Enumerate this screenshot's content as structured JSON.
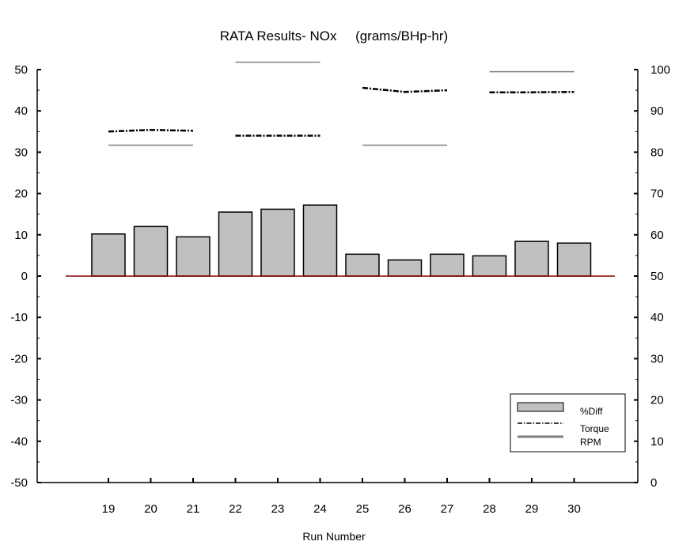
{
  "chart_data": {
    "type": "bar",
    "title": "RATA Results- NOx     (grams/BHp-hr)",
    "xlabel": "Run Number",
    "ylabel": "",
    "categories": [
      "19",
      "20",
      "21",
      "22",
      "23",
      "24",
      "25",
      "26",
      "27",
      "28",
      "29",
      "30"
    ],
    "ylim": [
      -50,
      50
    ],
    "y2lim": [
      0,
      100
    ],
    "y_ticks": [
      "50",
      "40",
      "30",
      "20",
      "10",
      "0",
      "-10",
      "-20",
      "-30",
      "-40",
      "-50"
    ],
    "y2_ticks": [
      "100",
      "90",
      "80",
      "70",
      "60",
      "50",
      "40",
      "30",
      "20",
      "10",
      "0"
    ],
    "grid": false,
    "legend_position": "bottom-right",
    "series": [
      {
        "name": "%Diff",
        "type": "bar",
        "axis": "left",
        "color": "#c0c0c0",
        "values": [
          10.2,
          12.0,
          9.5,
          15.5,
          16.2,
          17.2,
          5.3,
          3.9,
          5.3,
          4.9,
          8.4,
          8.0
        ]
      },
      {
        "name": "Torque",
        "type": "line",
        "style": "dash-dot",
        "axis": "right",
        "color": "#000000",
        "groups": [
          {
            "x": [
              "19",
              "20",
              "21"
            ],
            "values": [
              85.0,
              85.4,
              85.2
            ]
          },
          {
            "x": [
              "22",
              "23",
              "24"
            ],
            "values": [
              84.0,
              84.0,
              84.0
            ]
          },
          {
            "x": [
              "25",
              "26",
              "27"
            ],
            "values": [
              95.6,
              94.6,
              95.0
            ]
          },
          {
            "x": [
              "28",
              "29",
              "30"
            ],
            "values": [
              94.5,
              94.5,
              94.6
            ]
          }
        ]
      },
      {
        "name": "RPM",
        "type": "line",
        "style": "solid",
        "axis": "right",
        "color": "#808080",
        "groups": [
          {
            "x": [
              "19",
              "20",
              "21"
            ],
            "values": [
              81.7,
              81.7,
              81.7
            ]
          },
          {
            "x": [
              "22",
              "23",
              "24"
            ],
            "values": [
              101.8,
              101.8,
              101.8
            ]
          },
          {
            "x": [
              "25",
              "26",
              "27"
            ],
            "values": [
              81.7,
              81.7,
              81.7
            ]
          },
          {
            "x": [
              "28",
              "29",
              "30"
            ],
            "values": [
              99.5,
              99.5,
              99.5
            ]
          }
        ]
      }
    ],
    "baseline": {
      "value": 0,
      "color": "#8b0000"
    }
  }
}
